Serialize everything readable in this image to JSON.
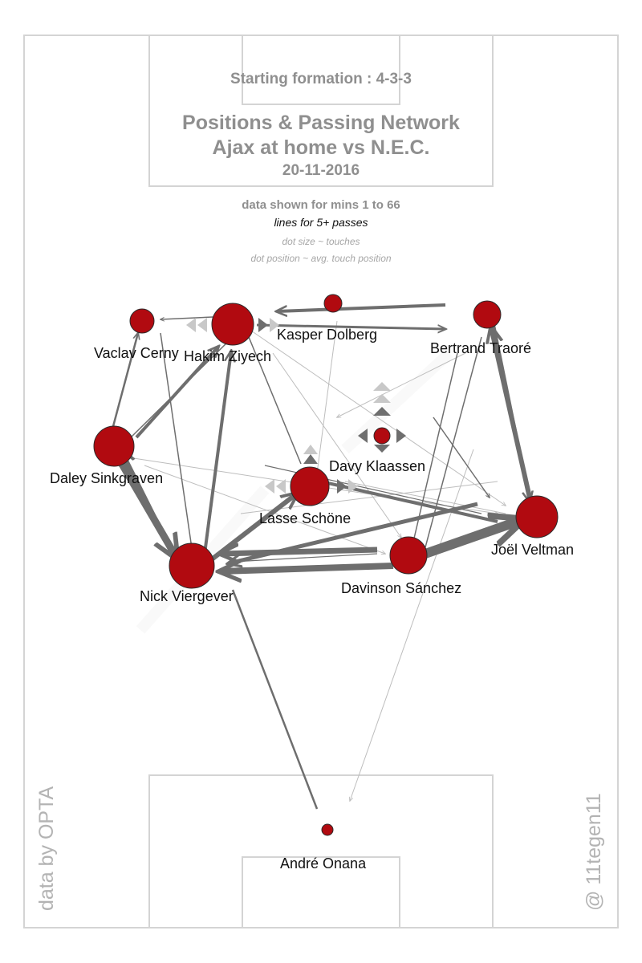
{
  "header": {
    "formation": "Starting formation : 4-3-3",
    "title_line1": "Positions & Passing Network",
    "title_line2": "Ajax at home vs N.E.C.",
    "date": "20-11-2016",
    "data_mins": "data shown for mins 1 to 66",
    "lines_note": "lines for 5+ passes",
    "dot_size_note": "dot size ~ touches",
    "dot_pos_note": "dot position ~ avg. touch position"
  },
  "credits": {
    "left": "data by OPTA",
    "right": "@ 11tegen11"
  },
  "colors": {
    "node_fill": "#b10a10",
    "pass_line": "#6e6e6e",
    "pass_line_light": "#bdbdbd",
    "pitch_line": "#d4d4d4",
    "text_gray": "#8f8f8f"
  },
  "players": [
    {
      "id": "cerny",
      "name": "Vaclav Cerny"
    },
    {
      "id": "ziyech",
      "name": "Hakim Ziyech"
    },
    {
      "id": "dolberg",
      "name": "Kasper Dolberg"
    },
    {
      "id": "traore",
      "name": "Bertrand Traoré"
    },
    {
      "id": "sinkgraven",
      "name": "Daley Sinkgraven"
    },
    {
      "id": "klaassen",
      "name": "Davy Klaassen"
    },
    {
      "id": "schone",
      "name": "Lasse Schöne"
    },
    {
      "id": "veltman",
      "name": "Joël Veltman"
    },
    {
      "id": "viergever",
      "name": "Nick Viergever"
    },
    {
      "id": "sanchez",
      "name": "Davinson Sánchez"
    },
    {
      "id": "onana",
      "name": "André Onana"
    }
  ]
}
